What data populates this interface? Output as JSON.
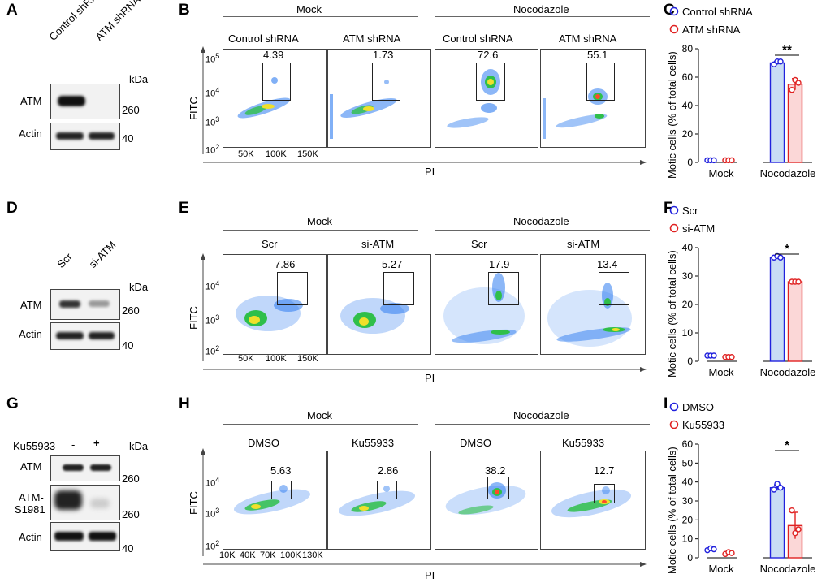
{
  "panels": {
    "A": "A",
    "B": "B",
    "C": "C",
    "D": "D",
    "E": "E",
    "F": "F",
    "G": "G",
    "H": "H",
    "I": "I"
  },
  "blotA": {
    "lanes": [
      "Control shRNA",
      "ATM shRNA"
    ],
    "kda": "kDa",
    "rows": [
      {
        "name": "ATM",
        "marker": "260"
      },
      {
        "name": "Actin",
        "marker": "40"
      }
    ]
  },
  "blotD": {
    "lanes": [
      "Scr",
      "si-ATM"
    ],
    "kda": "kDa",
    "rows": [
      {
        "name": "ATM",
        "marker": "260"
      },
      {
        "name": "Actin",
        "marker": "40"
      }
    ]
  },
  "blotG": {
    "treat": "Ku55933",
    "minus": "-",
    "plus": "+",
    "kda": "kDa",
    "rows": [
      {
        "name": "ATM",
        "marker": "260"
      },
      {
        "name": "ATM-",
        "name2": "S1981",
        "marker": "260"
      },
      {
        "name": "Actin",
        "marker": "40"
      }
    ]
  },
  "facsB": {
    "groups": [
      "Mock",
      "Nocodazole"
    ],
    "plots": [
      "Control shRNA",
      "ATM shRNA",
      "Control shRNA",
      "ATM shRNA"
    ],
    "values": [
      "4.39",
      "1.73",
      "72.6",
      "55.1"
    ],
    "ylabel": "FITC",
    "xlabel": "PI",
    "yticks": [
      "10^5",
      "10^4",
      "10^3",
      "10^2"
    ],
    "xticks": [
      "50K",
      "100K",
      "150K"
    ]
  },
  "facsE": {
    "groups": [
      "Mock",
      "Nocodazole"
    ],
    "plots": [
      "Scr",
      "si-ATM",
      "Scr",
      "si-ATM"
    ],
    "values": [
      "7.86",
      "5.27",
      "17.9",
      "13.4"
    ],
    "ylabel": "FITC",
    "xlabel": "PI",
    "yticks": [
      "10^4",
      "10^3",
      "10^2"
    ],
    "xticks": [
      "50K",
      "100K",
      "150K"
    ]
  },
  "facsH": {
    "groups": [
      "Mock",
      "Nocodazole"
    ],
    "plots": [
      "DMSO",
      "Ku55933",
      "DMSO",
      "Ku55933"
    ],
    "values": [
      "5.63",
      "2.86",
      "38.2",
      "12.7"
    ],
    "ylabel": "FITC",
    "xlabel": "PI",
    "yticks": [
      "10^4",
      "10^3",
      "10^2"
    ],
    "xticks": [
      "10K",
      "40K",
      "70K",
      "100K",
      "130K"
    ]
  },
  "chart_data": [
    {
      "type": "bar",
      "panel": "C",
      "ylabel": "Motic cells (% of total cells)",
      "categories": [
        "Mock",
        "Nocodazole"
      ],
      "ylim": [
        0,
        80
      ],
      "yticks": [
        "0",
        "20",
        "40",
        "60",
        "80"
      ],
      "significance": "**",
      "series": [
        {
          "name": "Control shRNA",
          "color": "#2222dd",
          "fill": "#c9ddf5",
          "values": [
            1.5,
            70
          ],
          "points": [
            [
              1.5,
              1.5,
              1.5
            ],
            [
              69,
              71,
              71
            ]
          ],
          "err": [
            0,
            1
          ]
        },
        {
          "name": "ATM shRNA",
          "color": "#e02222",
          "fill": "#fbd7d7",
          "values": [
            1.5,
            55
          ],
          "points": [
            [
              1.5,
              1.5,
              1.5
            ],
            [
              51,
              58,
              56
            ]
          ],
          "err": [
            0,
            4
          ]
        }
      ]
    },
    {
      "type": "bar",
      "panel": "F",
      "ylabel": "Motic cells (% of total cells)",
      "categories": [
        "Mock",
        "Nocodazole"
      ],
      "ylim": [
        0,
        40
      ],
      "yticks": [
        "0",
        "10",
        "20",
        "30",
        "40"
      ],
      "significance": "*",
      "series": [
        {
          "name": "Scr",
          "color": "#2222dd",
          "fill": "#c9ddf5",
          "values": [
            2,
            36.5
          ],
          "points": [
            [
              2,
              2,
              2
            ],
            [
              36.5,
              37,
              36.5
            ]
          ],
          "err": [
            0.5,
            0.5
          ]
        },
        {
          "name": "si-ATM",
          "color": "#e02222",
          "fill": "#fbd7d7",
          "values": [
            1.5,
            28
          ],
          "points": [
            [
              1.5,
              1.5,
              1.5
            ],
            [
              28,
              28,
              28
            ]
          ],
          "err": [
            0.3,
            0.4
          ]
        }
      ]
    },
    {
      "type": "bar",
      "panel": "I",
      "ylabel": "Motic cells (% of total cells)",
      "categories": [
        "Mock",
        "Nocodazole"
      ],
      "ylim": [
        0,
        60
      ],
      "yticks": [
        "0",
        "10",
        "20",
        "30",
        "40",
        "50",
        "60"
      ],
      "significance": "*",
      "series": [
        {
          "name": "DMSO",
          "color": "#2222dd",
          "fill": "#c9ddf5",
          "values": [
            4.5,
            37
          ],
          "points": [
            [
              4,
              5,
              4.5
            ],
            [
              36,
              39,
              37
            ]
          ],
          "err": [
            1,
            1.5
          ]
        },
        {
          "name": "Ku55933",
          "color": "#e02222",
          "fill": "#fbd7d7",
          "values": [
            2.5,
            17
          ],
          "points": [
            [
              2,
              3,
              2.5
            ],
            [
              25,
              13,
              15
            ]
          ],
          "err": [
            0.5,
            7
          ]
        }
      ]
    }
  ]
}
